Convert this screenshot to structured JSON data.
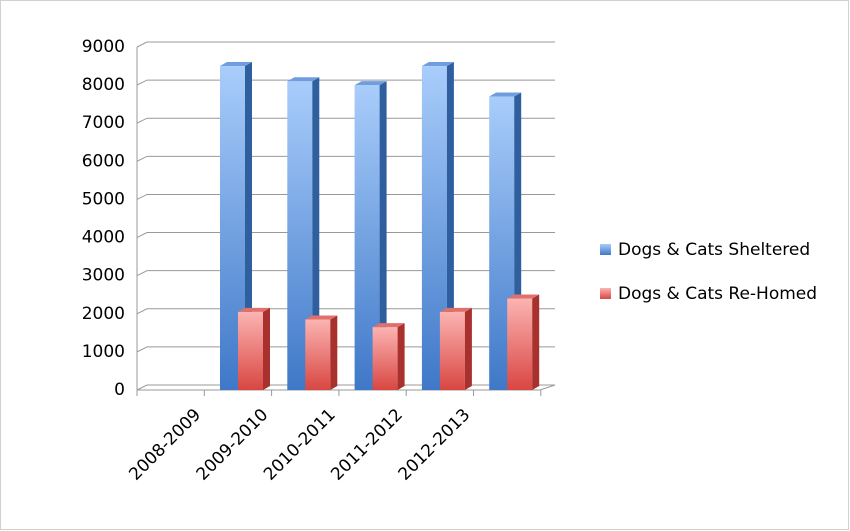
{
  "chart_data": {
    "type": "bar3d",
    "categories": [
      "2008-2009",
      "2009-2010",
      "2010-2011",
      "2011-2012",
      "2012-2013"
    ],
    "series": [
      {
        "name": "Dogs & Cats Sheltered",
        "color": "#4f81bd",
        "values": [
          8500,
          8100,
          8000,
          8500,
          7700
        ]
      },
      {
        "name": "Dogs & Cats Re-Homed",
        "color": "#c0504d",
        "values": [
          2050,
          1850,
          1650,
          2050,
          2400
        ]
      }
    ],
    "ylim": [
      0,
      9000
    ],
    "yticks": [
      0,
      1000,
      2000,
      3000,
      4000,
      5000,
      6000,
      7000,
      8000,
      9000
    ],
    "grid": true,
    "legend": "right"
  }
}
